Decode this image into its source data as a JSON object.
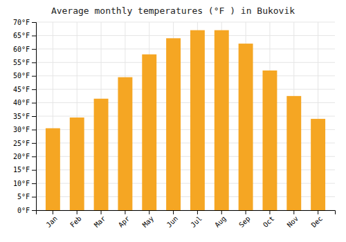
{
  "chart_data": {
    "type": "bar",
    "title": "Average monthly temperatures (°F ) in Bukovik",
    "categories": [
      "Jan",
      "Feb",
      "Mar",
      "Apr",
      "May",
      "Jun",
      "Jul",
      "Aug",
      "Sep",
      "Oct",
      "Nov",
      "Dec"
    ],
    "values": [
      30.5,
      34.5,
      41.5,
      49.5,
      58.0,
      64.0,
      67.0,
      67.0,
      62.0,
      52.0,
      42.5,
      34.0
    ],
    "color": "#F5A623",
    "ylim": [
      0,
      70
    ],
    "yticks": [
      {
        "value": 0,
        "label": "0°F"
      },
      {
        "value": 5,
        "label": "5°F"
      },
      {
        "value": 10,
        "label": "10°F"
      },
      {
        "value": 15,
        "label": "15°F"
      },
      {
        "value": 20,
        "label": "20°F"
      },
      {
        "value": 25,
        "label": "25°F"
      },
      {
        "value": 30,
        "label": "30°F"
      },
      {
        "value": 35,
        "label": "35°F"
      },
      {
        "value": 40,
        "label": "40°F"
      },
      {
        "value": 45,
        "label": "45°F"
      },
      {
        "value": 50,
        "label": "50°F"
      },
      {
        "value": 55,
        "label": "55°F"
      },
      {
        "value": 60,
        "label": "60°F"
      },
      {
        "value": 65,
        "label": "65°F"
      },
      {
        "value": 70,
        "label": "70°F"
      }
    ],
    "grid": true
  }
}
